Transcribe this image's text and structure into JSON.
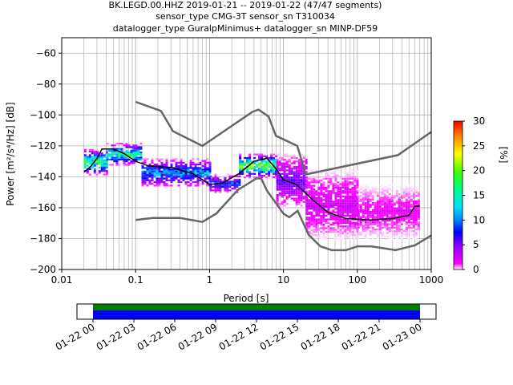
{
  "title_lines": [
    "BK.LEGD.00.HHZ   2019-01-21 -- 2019-01-22  (47/47 segments)",
    "sensor_type CMG-3T sensor_sn T310034",
    "datalogger_type GuralpMinimus+ datalogger_sn MINP-DF59"
  ],
  "chart_data": {
    "type": "heatmap",
    "xlabel": "Period [s]",
    "ylabel": "Power [m²/s⁴/Hz] [dB]",
    "x_scale": "log",
    "xlim": [
      0.01,
      1000
    ],
    "ylim": [
      -200,
      -50
    ],
    "grid": true,
    "x_ticks": [
      {
        "value": 0.01,
        "label": "0.01"
      },
      {
        "value": 0.1,
        "label": "0.1"
      },
      {
        "value": 1,
        "label": "1"
      },
      {
        "value": 10,
        "label": "10"
      },
      {
        "value": 100,
        "label": "100"
      },
      {
        "value": 1000,
        "label": "1000"
      }
    ],
    "y_ticks": [
      {
        "value": -60,
        "label": "−60"
      },
      {
        "value": -80,
        "label": "−80"
      },
      {
        "value": -100,
        "label": "−100"
      },
      {
        "value": -120,
        "label": "−120"
      },
      {
        "value": -140,
        "label": "−140"
      },
      {
        "value": -160,
        "label": "−160"
      },
      {
        "value": -180,
        "label": "−180"
      },
      {
        "value": -200,
        "label": "−200"
      }
    ],
    "colorbar": {
      "label": "[%]",
      "range": [
        0,
        30
      ],
      "ticks": [
        {
          "value": 0,
          "label": "0"
        },
        {
          "value": 5,
          "label": "5"
        },
        {
          "value": 10,
          "label": "10"
        },
        {
          "value": 15,
          "label": "15"
        },
        {
          "value": 20,
          "label": "20"
        },
        {
          "value": 25,
          "label": "25"
        },
        {
          "value": 30,
          "label": "30"
        }
      ]
    },
    "noise_models": [
      {
        "points": [
          [
            0.1,
            -91.5
          ],
          [
            0.22,
            -97.4
          ],
          [
            0.32,
            -110.5
          ],
          [
            0.8,
            -120
          ],
          [
            3.8,
            -98
          ],
          [
            4.6,
            -96.5
          ],
          [
            6.3,
            -101
          ],
          [
            7.9,
            -113.5
          ],
          [
            15.4,
            -120
          ],
          [
            20,
            -138.5
          ],
          [
            354,
            -126
          ],
          [
            1000,
            -111
          ]
        ]
      },
      {
        "points": [
          [
            0.1,
            -168
          ],
          [
            0.17,
            -166.7
          ],
          [
            0.4,
            -166.7
          ],
          [
            0.8,
            -169.2
          ],
          [
            1.24,
            -163.7
          ],
          [
            2.4,
            -148.6
          ],
          [
            4.3,
            -141.1
          ],
          [
            5,
            -141.1
          ],
          [
            6,
            -149
          ],
          [
            10,
            -163.8
          ],
          [
            12,
            -166.2
          ],
          [
            15.6,
            -162
          ],
          [
            21.9,
            -177.5
          ],
          [
            31.6,
            -185
          ],
          [
            45,
            -187.5
          ],
          [
            70,
            -187.5
          ],
          [
            101,
            -185
          ],
          [
            154,
            -185
          ],
          [
            328,
            -187.5
          ],
          [
            600,
            -184.4
          ],
          [
            1000,
            -178
          ]
        ]
      }
    ],
    "mean_curve": [
      [
        0.02,
        -137
      ],
      [
        0.025,
        -133
      ],
      [
        0.03,
        -128
      ],
      [
        0.035,
        -122
      ],
      [
        0.05,
        -122
      ],
      [
        0.07,
        -125
      ],
      [
        0.1,
        -130
      ],
      [
        0.15,
        -133
      ],
      [
        0.3,
        -134
      ],
      [
        0.6,
        -138
      ],
      [
        1,
        -145
      ],
      [
        1.5,
        -144
      ],
      [
        2.5,
        -138
      ],
      [
        4,
        -130
      ],
      [
        6,
        -128
      ],
      [
        8,
        -135
      ],
      [
        10,
        -142
      ],
      [
        15,
        -145
      ],
      [
        25,
        -155
      ],
      [
        40,
        -163
      ],
      [
        70,
        -167
      ],
      [
        150,
        -168
      ],
      [
        300,
        -167
      ],
      [
        500,
        -165
      ],
      [
        600,
        -159
      ],
      [
        700,
        -159
      ]
    ],
    "density_bands": [
      {
        "period_range": [
          0.02,
          0.04
        ],
        "db_range": [
          -138,
          -122
        ],
        "percent_peak": 20
      },
      {
        "period_range": [
          0.04,
          0.12
        ],
        "db_range": [
          -132,
          -118
        ],
        "percent_peak": 18
      },
      {
        "period_range": [
          0.12,
          1.0
        ],
        "db_range": [
          -146,
          -128
        ],
        "percent_peak": 12
      },
      {
        "period_range": [
          1.0,
          2.5
        ],
        "db_range": [
          -150,
          -138
        ],
        "percent_peak": 10
      },
      {
        "period_range": [
          2.5,
          8
        ],
        "db_range": [
          -140,
          -125
        ],
        "percent_peak": 22
      },
      {
        "period_range": [
          8,
          20
        ],
        "db_range": [
          -160,
          -125
        ],
        "percent_peak": 6
      },
      {
        "period_range": [
          20,
          100
        ],
        "db_range": [
          -180,
          -135
        ],
        "percent_peak": 3
      },
      {
        "period_range": [
          100,
          700
        ],
        "db_range": [
          -180,
          -145
        ],
        "percent_peak": 2
      }
    ]
  },
  "time_axis": {
    "tick_labels": [
      "01-22 00",
      "01-22 03",
      "01-22 06",
      "01-22 09",
      "01-22 12",
      "01-22 15",
      "01-22 18",
      "01-22 21",
      "01-23 00"
    ],
    "bars": [
      {
        "color": "#008000",
        "from": "01-22 00",
        "to": "01-23 00"
      },
      {
        "color": "#0000ff",
        "from": "01-22 00",
        "to": "01-23 00"
      }
    ]
  }
}
